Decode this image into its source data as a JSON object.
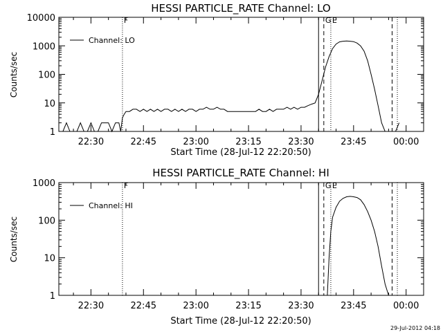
{
  "footer": {
    "timestamp": "29-Jul-2012 04:18"
  },
  "chart_data": [
    {
      "type": "line",
      "title": "HESSI PARTICLE_RATE Channel: LO",
      "xlabel": "Start Time (28-Jul-12 22:20:50)",
      "ylabel": "Counts/sec",
      "yscale": "log",
      "ylim": [
        1,
        10000
      ],
      "xlim": [
        "22:20:50",
        "00:05:00"
      ],
      "x_ticks": [
        "22:30",
        "22:45",
        "23:00",
        "23:15",
        "23:30",
        "23:45",
        "00:00"
      ],
      "y_ticks": [
        "1",
        "10",
        "100",
        "1000",
        "10000"
      ],
      "legend": {
        "label": "Channel: LO",
        "position": "top-left"
      },
      "markers": [
        {
          "label": "F",
          "time": "22:39",
          "style": "dotted"
        },
        {
          "label": "",
          "time": "23:35",
          "style": "solid"
        },
        {
          "label": "G",
          "time": "23:36:30",
          "style": "dashed"
        },
        {
          "label": "E",
          "time": "23:38:30",
          "style": "dotted"
        },
        {
          "label": "",
          "time": "23:56",
          "style": "dashed"
        },
        {
          "label": "",
          "time": "23:57:30",
          "style": "dotted"
        }
      ],
      "series": [
        {
          "x": [
            "22:20:50",
            "22:21",
            "22:22",
            "22:23",
            "22:24",
            "22:25",
            "22:26",
            "22:27",
            "22:28",
            "22:29",
            "22:30",
            "22:31",
            "22:32",
            "22:33",
            "22:34",
            "22:35",
            "22:36",
            "22:37",
            "22:38",
            "22:38:30",
            "22:39",
            "22:39:30",
            "22:40",
            "22:41",
            "22:42",
            "22:43",
            "22:44",
            "22:45",
            "22:46",
            "22:47",
            "22:48",
            "22:49",
            "22:50",
            "22:51",
            "22:52",
            "22:53",
            "22:54",
            "22:55",
            "22:56",
            "22:57",
            "22:58",
            "22:59",
            "23:00",
            "23:01",
            "23:02",
            "23:03",
            "23:04",
            "23:05",
            "23:06",
            "23:07",
            "23:08",
            "23:09",
            "23:10",
            "23:11",
            "23:12",
            "23:13",
            "23:14",
            "23:15",
            "23:16",
            "23:17",
            "23:18",
            "23:19",
            "23:20",
            "23:21",
            "23:22",
            "23:23",
            "23:24",
            "23:25",
            "23:26",
            "23:27",
            "23:28",
            "23:29",
            "23:30",
            "23:31",
            "23:32",
            "23:33",
            "23:34",
            "23:35",
            "23:36",
            "23:37",
            "23:38",
            "23:39",
            "23:40",
            "23:41",
            "23:42",
            "23:43",
            "23:44",
            "23:45",
            "23:46",
            "23:47",
            "23:48",
            "23:49",
            "23:50",
            "23:51",
            "23:52",
            "23:53",
            "23:54",
            "23:55",
            "23:56",
            "23:57",
            "23:58"
          ],
          "values": [
            1,
            1,
            1,
            2,
            1,
            1,
            1,
            2,
            1,
            1,
            2,
            1,
            1,
            2,
            2,
            2,
            1,
            2,
            2,
            1,
            3,
            4,
            5,
            5,
            6,
            6,
            5,
            6,
            5,
            6,
            5,
            6,
            5,
            6,
            6,
            5,
            6,
            5,
            6,
            5,
            6,
            6,
            5,
            6,
            6,
            7,
            6,
            6,
            7,
            6,
            6,
            5,
            5,
            5,
            5,
            5,
            5,
            5,
            5,
            5,
            6,
            5,
            5,
            6,
            5,
            6,
            6,
            6,
            7,
            6,
            7,
            6,
            7,
            7,
            8,
            9,
            10,
            20,
            60,
            180,
            420,
            800,
            1150,
            1380,
            1450,
            1480,
            1450,
            1400,
            1250,
            1000,
            650,
            300,
            100,
            30,
            8,
            2,
            1,
            1,
            1,
            1,
            2
          ]
        }
      ]
    },
    {
      "type": "line",
      "title": "HESSI PARTICLE_RATE Channel: HI",
      "xlabel": "Start Time (28-Jul-12 22:20:50)",
      "ylabel": "Counts/sec",
      "yscale": "log",
      "ylim": [
        1,
        1000
      ],
      "xlim": [
        "22:20:50",
        "00:05:00"
      ],
      "x_ticks": [
        "22:30",
        "22:45",
        "23:00",
        "23:15",
        "23:30",
        "23:45",
        "00:00"
      ],
      "y_ticks": [
        "1",
        "10",
        "100",
        "1000"
      ],
      "legend": {
        "label": "Channel: HI",
        "position": "top-left"
      },
      "markers": [
        {
          "label": "F",
          "time": "22:39",
          "style": "dotted"
        },
        {
          "label": "",
          "time": "23:35",
          "style": "solid"
        },
        {
          "label": "G",
          "time": "23:36:30",
          "style": "dashed"
        },
        {
          "label": "E",
          "time": "23:38:30",
          "style": "dotted"
        },
        {
          "label": "",
          "time": "23:56",
          "style": "dashed"
        },
        {
          "label": "",
          "time": "23:57:30",
          "style": "dotted"
        }
      ],
      "series": [
        {
          "x": [
            "23:37:30",
            "23:38",
            "23:38:30",
            "23:39",
            "23:40",
            "23:41",
            "23:42",
            "23:43",
            "23:44",
            "23:45",
            "23:46",
            "23:47",
            "23:48",
            "23:49",
            "23:50",
            "23:51",
            "23:52",
            "23:53",
            "23:54",
            "23:55"
          ],
          "values": [
            1,
            10,
            50,
            120,
            220,
            320,
            380,
            420,
            430,
            420,
            400,
            350,
            260,
            170,
            100,
            50,
            20,
            6,
            2,
            1
          ]
        }
      ]
    }
  ]
}
